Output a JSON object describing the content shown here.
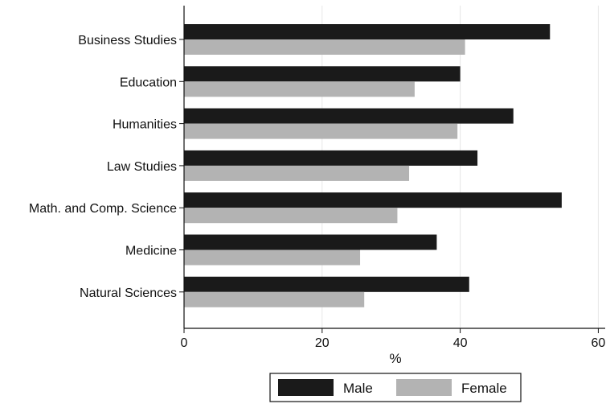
{
  "chart_data": {
    "type": "bar",
    "orientation": "horizontal",
    "categories": [
      "Business Studies",
      "Education",
      "Humanities",
      "Law Studies",
      "Math. and Comp. Science",
      "Medicine",
      "Natural Sciences"
    ],
    "series": [
      {
        "name": "Male",
        "color": "#1a1a1a",
        "values": [
          53.0,
          40.0,
          47.7,
          42.5,
          54.7,
          36.6,
          41.3
        ]
      },
      {
        "name": "Female",
        "color": "#b3b3b3",
        "values": [
          40.7,
          33.4,
          39.6,
          32.6,
          30.9,
          25.5,
          26.1
        ]
      }
    ],
    "xlabel": "%",
    "xlim": [
      0,
      61
    ],
    "xticks": [
      0,
      20,
      40,
      60
    ],
    "xtick_labels": [
      "0",
      "20",
      "40",
      "60"
    ],
    "grid": true,
    "legend": {
      "position": "bottom",
      "entries": [
        "Male",
        "Female"
      ]
    }
  }
}
